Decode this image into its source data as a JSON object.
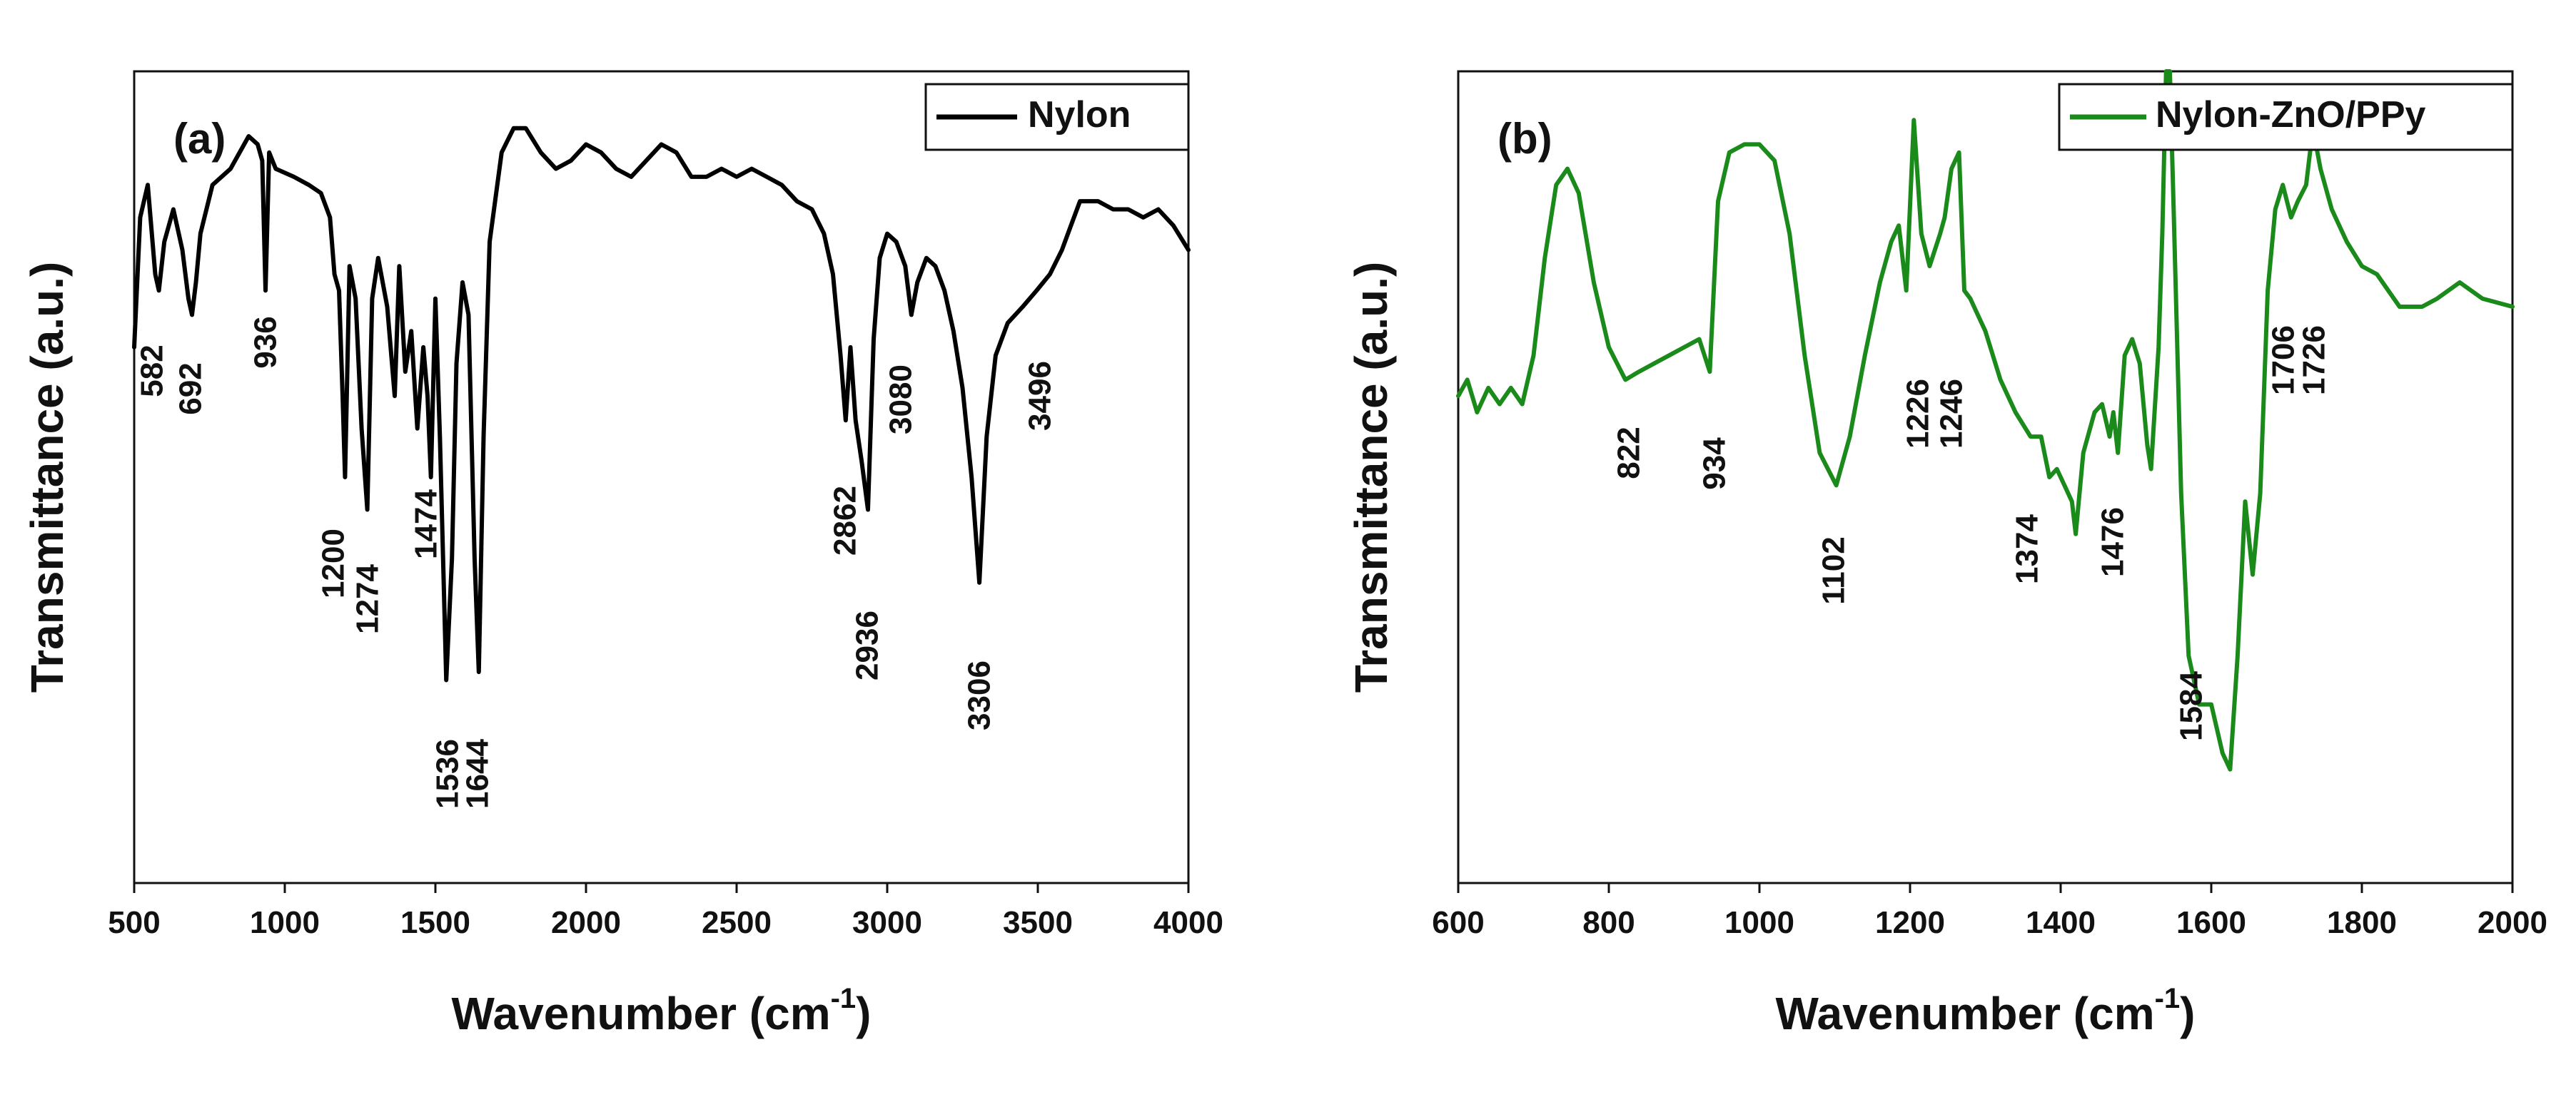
{
  "chart_data": [
    {
      "type": "line",
      "panel_label": "(a)",
      "title": "",
      "xlabel": "Wavenumber (cm",
      "xlabel_sup": "-1",
      "xlabel_close": ")",
      "ylabel": "Transmittance (a.u.)",
      "xlim": [
        500,
        4000
      ],
      "ylim": [
        0,
        100
      ],
      "yticks_shown": false,
      "xticks": [
        500,
        1000,
        1500,
        2000,
        2500,
        3000,
        3500,
        4000
      ],
      "xtick_labels": [
        "500",
        "1000",
        "1500",
        "2000",
        "2500",
        "3000",
        "3500",
        "4000"
      ],
      "legend": "top-right",
      "series": [
        {
          "name": "Nylon",
          "color": "#000000",
          "x": [
            500,
            520,
            545,
            570,
            582,
            600,
            630,
            660,
            680,
            692,
            705,
            720,
            760,
            820,
            880,
            910,
            925,
            936,
            948,
            970,
            1030,
            1080,
            1120,
            1150,
            1165,
            1180,
            1192,
            1200,
            1215,
            1235,
            1255,
            1274,
            1290,
            1310,
            1340,
            1365,
            1380,
            1400,
            1420,
            1440,
            1460,
            1474,
            1485,
            1500,
            1515,
            1536,
            1555,
            1570,
            1590,
            1610,
            1630,
            1644,
            1660,
            1680,
            1720,
            1760,
            1800,
            1850,
            1900,
            1950,
            2000,
            2050,
            2100,
            2150,
            2200,
            2250,
            2300,
            2350,
            2400,
            2450,
            2500,
            2550,
            2600,
            2650,
            2700,
            2750,
            2790,
            2820,
            2845,
            2862,
            2878,
            2895,
            2915,
            2936,
            2955,
            2975,
            3000,
            3030,
            3060,
            3080,
            3100,
            3130,
            3160,
            3190,
            3220,
            3250,
            3280,
            3306,
            3330,
            3360,
            3400,
            3450,
            3496,
            3540,
            3580,
            3610,
            3640,
            3700,
            3750,
            3800,
            3850,
            3900,
            3950,
            4000
          ],
          "y": [
            66,
            82,
            86,
            75,
            73,
            79,
            83,
            78,
            72,
            70,
            74,
            80,
            86,
            88,
            92,
            91,
            89,
            73,
            90,
            88,
            87,
            86,
            85,
            82,
            75,
            73,
            60,
            50,
            76,
            72,
            56,
            46,
            72,
            77,
            71,
            60,
            76,
            63,
            68,
            56,
            66,
            60,
            50,
            72,
            55,
            25,
            40,
            64,
            74,
            70,
            40,
            26,
            55,
            79,
            90,
            93,
            93,
            90,
            88,
            89,
            91,
            90,
            88,
            87,
            89,
            91,
            90,
            87,
            87,
            88,
            87,
            88,
            87,
            86,
            84,
            83,
            80,
            75,
            65,
            57,
            66,
            57,
            52,
            46,
            67,
            77,
            80,
            79,
            76,
            70,
            74,
            77,
            76,
            73,
            68,
            61,
            50,
            37,
            55,
            65,
            69,
            71,
            73,
            75,
            78,
            81,
            84,
            84,
            83,
            83,
            82,
            83,
            81,
            78
          ]
        }
      ],
      "annotations": [
        {
          "text": "582",
          "x": 582
        },
        {
          "text": "692",
          "x": 692
        },
        {
          "text": "936",
          "x": 936
        },
        {
          "text": "1200",
          "x": 1200
        },
        {
          "text": "1274",
          "x": 1274
        },
        {
          "text": "1474",
          "x": 1474
        },
        {
          "text": "1536",
          "x": 1536
        },
        {
          "text": "1644",
          "x": 1644
        },
        {
          "text": "2862",
          "x": 2862
        },
        {
          "text": "2936",
          "x": 2936
        },
        {
          "text": "3080",
          "x": 3080
        },
        {
          "text": "3306",
          "x": 3306
        },
        {
          "text": "3496",
          "x": 3496
        }
      ]
    },
    {
      "type": "line",
      "panel_label": "(b)",
      "title": "",
      "xlabel": "Wavenumber (cm",
      "xlabel_sup": "-1",
      "xlabel_close": ")",
      "ylabel": "Transmittance (a.u.)",
      "xlim": [
        600,
        2000
      ],
      "ylim": [
        0,
        100
      ],
      "yticks_shown": false,
      "xticks": [
        600,
        800,
        1000,
        1200,
        1400,
        1600,
        1800,
        2000
      ],
      "xtick_labels": [
        "600",
        "800",
        "1000",
        "1200",
        "1400",
        "1600",
        "1800",
        "2000"
      ],
      "legend": "top-right",
      "series": [
        {
          "name": "Nylon-ZnO/PPy",
          "color": "#1a8a1a",
          "x": [
            600,
            612,
            625,
            640,
            655,
            670,
            685,
            700,
            715,
            730,
            745,
            760,
            780,
            800,
            822,
            840,
            860,
            880,
            900,
            920,
            934,
            945,
            960,
            980,
            1000,
            1020,
            1040,
            1060,
            1080,
            1102,
            1120,
            1140,
            1160,
            1175,
            1185,
            1195,
            1205,
            1215,
            1226,
            1240,
            1246,
            1255,
            1265,
            1272,
            1280,
            1290,
            1300,
            1320,
            1340,
            1360,
            1374,
            1385,
            1395,
            1405,
            1415,
            1420,
            1430,
            1445,
            1455,
            1465,
            1470,
            1476,
            1485,
            1495,
            1505,
            1515,
            1520,
            1530,
            1535,
            1540,
            1545,
            1550,
            1560,
            1570,
            1584,
            1600,
            1615,
            1625,
            1635,
            1645,
            1655,
            1665,
            1675,
            1685,
            1695,
            1706,
            1715,
            1726,
            1735,
            1745,
            1760,
            1780,
            1800,
            1820,
            1850,
            1880,
            1900,
            1930,
            1960,
            2000
          ],
          "y": [
            60,
            62,
            58,
            61,
            59,
            61,
            59,
            65,
            77,
            86,
            88,
            85,
            74,
            66,
            62,
            63,
            64,
            65,
            66,
            67,
            63,
            84,
            90,
            91,
            91,
            89,
            80,
            65,
            53,
            49,
            55,
            65,
            74,
            79,
            81,
            73,
            94,
            80,
            76,
            80,
            82,
            88,
            90,
            73,
            72,
            70,
            68,
            62,
            58,
            55,
            55,
            50,
            51,
            49,
            47,
            43,
            53,
            58,
            59,
            55,
            58,
            53,
            65,
            67,
            64,
            54,
            51,
            66,
            80,
            100,
            100,
            83,
            48,
            28,
            22,
            22,
            16,
            14,
            28,
            47,
            38,
            48,
            73,
            83,
            86,
            82,
            84,
            86,
            93,
            88,
            83,
            79,
            76,
            75,
            71,
            71,
            72,
            74,
            72,
            71
          ]
        }
      ],
      "annotations": [
        {
          "text": "822",
          "x": 822
        },
        {
          "text": "934",
          "x": 934
        },
        {
          "text": "1102",
          "x": 1102
        },
        {
          "text": "1226",
          "x": 1226
        },
        {
          "text": "1246",
          "x": 1246
        },
        {
          "text": "1374",
          "x": 1374
        },
        {
          "text": "1476",
          "x": 1476
        },
        {
          "text": "1584",
          "x": 1584
        },
        {
          "text": "1706",
          "x": 1706
        },
        {
          "text": "1726",
          "x": 1726
        }
      ]
    }
  ]
}
